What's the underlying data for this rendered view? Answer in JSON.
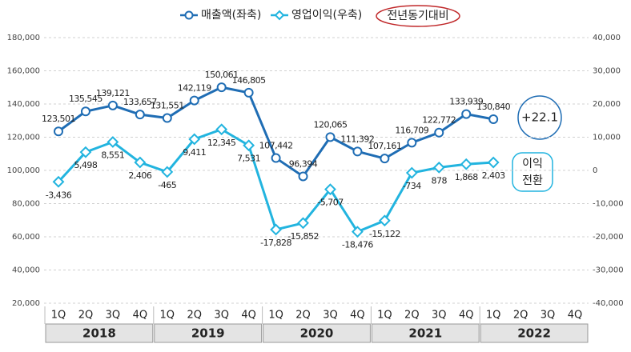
{
  "chart_data": {
    "type": "line",
    "legend_note": "전년동기대비",
    "categories": [
      "1Q",
      "2Q",
      "3Q",
      "4Q",
      "1Q",
      "2Q",
      "3Q",
      "4Q",
      "1Q",
      "2Q",
      "3Q",
      "4Q",
      "1Q",
      "2Q",
      "3Q",
      "4Q",
      "1Q",
      "2Q",
      "3Q",
      "4Q"
    ],
    "years": [
      "2018",
      "2019",
      "2020",
      "2021",
      "2022"
    ],
    "series": [
      {
        "name": "매출액(좌축)",
        "color": "#1f6db4",
        "marker": "circle",
        "values": [
          123501,
          135545,
          139121,
          133657,
          131551,
          142119,
          150061,
          146805,
          107442,
          96394,
          120065,
          111392,
          107161,
          116709,
          122772,
          133939,
          130840,
          null,
          null,
          null
        ],
        "value_labels": [
          "123,501",
          "135,545",
          "139,121",
          "133,657",
          "131,551",
          "142,119",
          "150,061",
          "146,805",
          "107,442",
          "96,394",
          "120,065",
          "111,392",
          "107,161",
          "116,709",
          "122,772",
          "133,939",
          "130,840",
          null,
          null,
          null
        ]
      },
      {
        "name": "영업이익(우축)",
        "color": "#22b4df",
        "marker": "diamond",
        "axis": "y2",
        "values": [
          -3436,
          5498,
          8551,
          2406,
          -465,
          9411,
          12345,
          7531,
          -17828,
          -15852,
          -5707,
          -18476,
          -15122,
          -734,
          878,
          1868,
          2403,
          null,
          null,
          null
        ],
        "value_labels": [
          "-3,436",
          "5,498",
          "8,551",
          "2,406",
          "-465",
          "9,411",
          "12,345",
          "7,531",
          "-17,828",
          "-15,852",
          "-5,707",
          "-18,476",
          "-15,122",
          "-734",
          "878",
          "1,868",
          "2,403",
          null,
          null,
          null
        ]
      }
    ],
    "ylim": [
      20000,
      180000
    ],
    "yticks": [
      {
        "value": 20000,
        "label": "20,000"
      },
      {
        "value": 40000,
        "label": "40,000"
      },
      {
        "value": 60000,
        "label": "60,000"
      },
      {
        "value": 80000,
        "label": "80,000"
      },
      {
        "value": 100000,
        "label": "100,000"
      },
      {
        "value": 120000,
        "label": "120,000"
      },
      {
        "value": 140000,
        "label": "140,000"
      },
      {
        "value": 160000,
        "label": "160,000"
      },
      {
        "value": 180000,
        "label": "180,000"
      }
    ],
    "y2lim": [
      -40000,
      40000
    ],
    "y2ticks": [
      {
        "value": -40000,
        "label": "-40,000"
      },
      {
        "value": -30000,
        "label": "-30,000"
      },
      {
        "value": -20000,
        "label": "-20,000"
      },
      {
        "value": -10000,
        "label": "-10,000"
      },
      0,
      {
        "value": 10000,
        "label": "10,000"
      },
      {
        "value": 20000,
        "label": "20,000"
      },
      {
        "value": 30000,
        "label": "30,000"
      },
      {
        "value": 40000,
        "label": "40,000"
      }
    ],
    "grid": true,
    "annotations": [
      "+22.1",
      "이익",
      "전환"
    ]
  }
}
